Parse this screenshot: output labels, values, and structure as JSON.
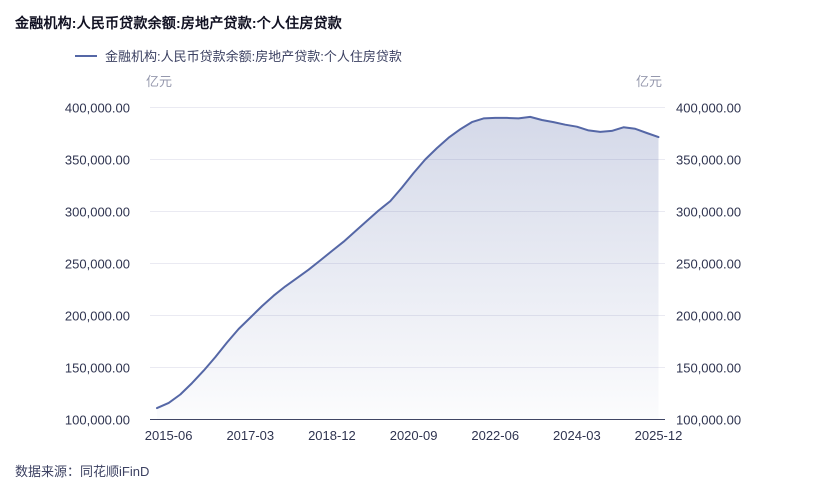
{
  "footer": {
    "source": "数据来源：同花顺iFinD"
  },
  "chart_data": {
    "type": "area",
    "title": "金融机构:人民币贷款余额:房地产贷款:个人住房贷款",
    "legend": [
      "金融机构:人民币贷款余额:房地产贷款:个人住房贷款"
    ],
    "unit": "亿元",
    "ylabel": "亿元",
    "ylim": [
      100000,
      400000
    ],
    "y_ticks": [
      100000,
      150000,
      200000,
      250000,
      300000,
      350000,
      400000
    ],
    "grid": "horizontal",
    "legend_position": "top-left",
    "x": [
      "2015-03",
      "2015-06",
      "2015-09",
      "2015-12",
      "2016-03",
      "2016-06",
      "2016-09",
      "2016-12",
      "2017-03",
      "2017-06",
      "2017-09",
      "2017-12",
      "2018-03",
      "2018-06",
      "2018-09",
      "2018-12",
      "2019-03",
      "2019-06",
      "2019-09",
      "2019-12",
      "2020-03",
      "2020-06",
      "2020-09",
      "2020-12",
      "2021-03",
      "2021-06",
      "2021-09",
      "2021-12",
      "2022-03",
      "2022-06",
      "2022-09",
      "2022-12",
      "2023-03",
      "2023-06",
      "2023-09",
      "2023-12",
      "2024-03",
      "2024-06",
      "2024-09",
      "2024-12",
      "2025-03",
      "2025-06",
      "2025-09",
      "2025-12"
    ],
    "x_tick_indices": [
      1,
      8,
      15,
      22,
      29,
      36,
      43
    ],
    "series": [
      {
        "name": "金融机构:人民币贷款余额:房地产贷款:个人住房贷款",
        "values": [
          111000,
          116000,
          124000,
          135000,
          147000,
          160000,
          174000,
          187000,
          198000,
          209000,
          219000,
          228000,
          236000,
          244000,
          253000,
          262000,
          271000,
          281000,
          291000,
          301000,
          310000,
          323000,
          337000,
          350000,
          361000,
          371000,
          379000,
          386000,
          389500,
          390000,
          390000,
          389500,
          391000,
          388000,
          386000,
          383500,
          381500,
          378000,
          376500,
          377500,
          381000,
          379500,
          375500,
          371500
        ]
      }
    ],
    "colors": {
      "line": "#5567a6",
      "area_fill": "#5567a6",
      "grid_line": "#eaeaf2",
      "axis_line": "#3f4564",
      "tick_text": "#2f3450"
    }
  }
}
